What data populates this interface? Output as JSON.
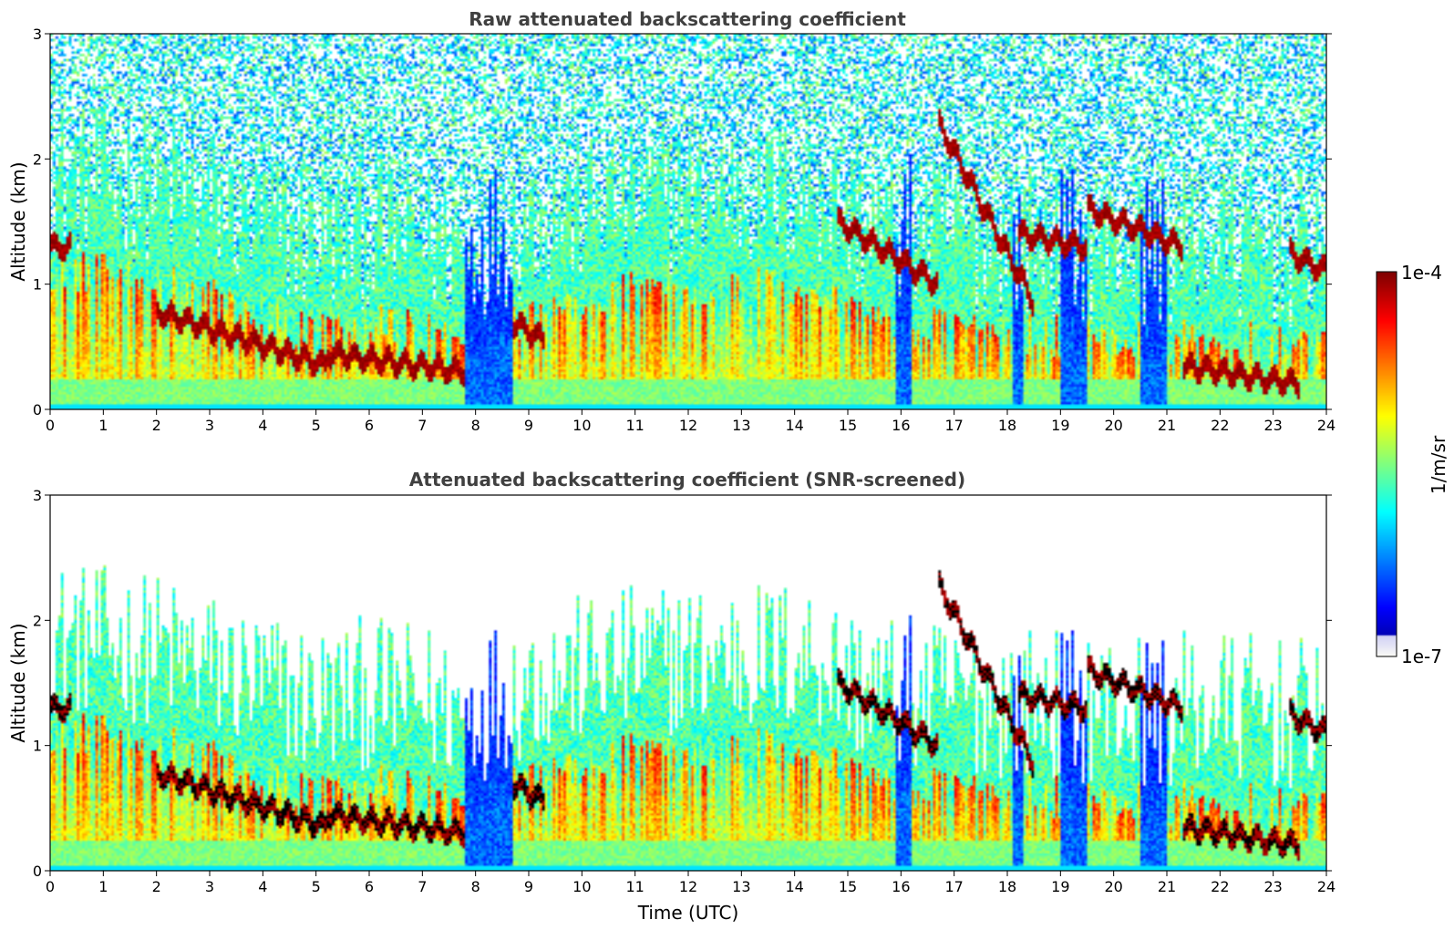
{
  "chart_data": [
    {
      "type": "heatmap",
      "title": "Raw attenuated backscattering coefficient",
      "xlabel": "",
      "ylabel": "Altitude (km)",
      "xlim": [
        0,
        24
      ],
      "ylim": [
        0,
        3
      ],
      "x_ticks": [
        "0",
        "1",
        "2",
        "3",
        "4",
        "5",
        "6",
        "7",
        "8",
        "9",
        "10",
        "11",
        "12",
        "13",
        "14",
        "15",
        "16",
        "17",
        "18",
        "19",
        "20",
        "21",
        "22",
        "23",
        "24"
      ],
      "y_ticks": [
        "0",
        "1",
        "2",
        "3"
      ],
      "screened": false
    },
    {
      "type": "heatmap",
      "title": "Attenuated backscattering coefficient (SNR-screened)",
      "xlabel": "Time (UTC)",
      "ylabel": "Altitude (km)",
      "xlim": [
        0,
        24
      ],
      "ylim": [
        0,
        3
      ],
      "x_ticks": [
        "0",
        "1",
        "2",
        "3",
        "4",
        "5",
        "6",
        "7",
        "8",
        "9",
        "10",
        "11",
        "12",
        "13",
        "14",
        "15",
        "16",
        "17",
        "18",
        "19",
        "20",
        "21",
        "22",
        "23",
        "24"
      ],
      "y_ticks": [
        "0",
        "1",
        "2",
        "3"
      ],
      "screened": true
    }
  ],
  "colorbar": {
    "label": "1/m/sr",
    "max_label": "1e-4",
    "min_label": "1e-7",
    "colormap": "jet",
    "under_color": "#dcdcf5"
  },
  "layers": {
    "boundary_layer": [
      {
        "t": 0,
        "top": 0.95
      },
      {
        "t": 1,
        "top": 0.9
      },
      {
        "t": 2,
        "top": 0.85
      },
      {
        "t": 3,
        "top": 0.72
      },
      {
        "t": 4,
        "top": 0.55
      },
      {
        "t": 5,
        "top": 0.45
      },
      {
        "t": 6,
        "top": 0.5
      },
      {
        "t": 7,
        "top": 0.45
      },
      {
        "t": 7.8,
        "top": 0.35
      },
      {
        "t": 9,
        "top": 0.6
      },
      {
        "t": 11,
        "top": 0.75
      },
      {
        "t": 13,
        "top": 0.8
      },
      {
        "t": 14.5,
        "top": 0.8
      },
      {
        "t": 15,
        "top": 0.6
      },
      {
        "t": 16,
        "top": 0.5
      },
      {
        "t": 21,
        "top": 0.35
      },
      {
        "t": 22,
        "top": 0.4
      },
      {
        "t": 23.5,
        "top": 0.3
      },
      {
        "t": 24,
        "top": 0.5
      }
    ],
    "cloud_segments": [
      {
        "t0": 2.0,
        "t1": 5.2,
        "alt0": 0.78,
        "alt1": 0.35
      },
      {
        "t0": 5.2,
        "t1": 7.8,
        "alt0": 0.45,
        "alt1": 0.3
      },
      {
        "t0": 14.8,
        "t1": 16.7,
        "alt0": 1.5,
        "alt1": 1.0
      },
      {
        "t0": 16.7,
        "t1": 18.5,
        "alt0": 2.3,
        "alt1": 0.85
      },
      {
        "t0": 18.2,
        "t1": 19.5,
        "alt0": 1.4,
        "alt1": 1.3
      },
      {
        "t0": 19.5,
        "t1": 21.3,
        "alt0": 1.6,
        "alt1": 1.3
      },
      {
        "t0": 21.3,
        "t1": 23.5,
        "alt0": 0.35,
        "alt1": 0.2
      },
      {
        "t0": 23.3,
        "t1": 24.0,
        "alt0": 1.25,
        "alt1": 1.1
      },
      {
        "t0": 8.7,
        "t1": 9.3,
        "alt0": 0.7,
        "alt1": 0.55
      },
      {
        "t0": 0.0,
        "t1": 0.4,
        "alt0": 1.3,
        "alt1": 1.3
      }
    ]
  }
}
